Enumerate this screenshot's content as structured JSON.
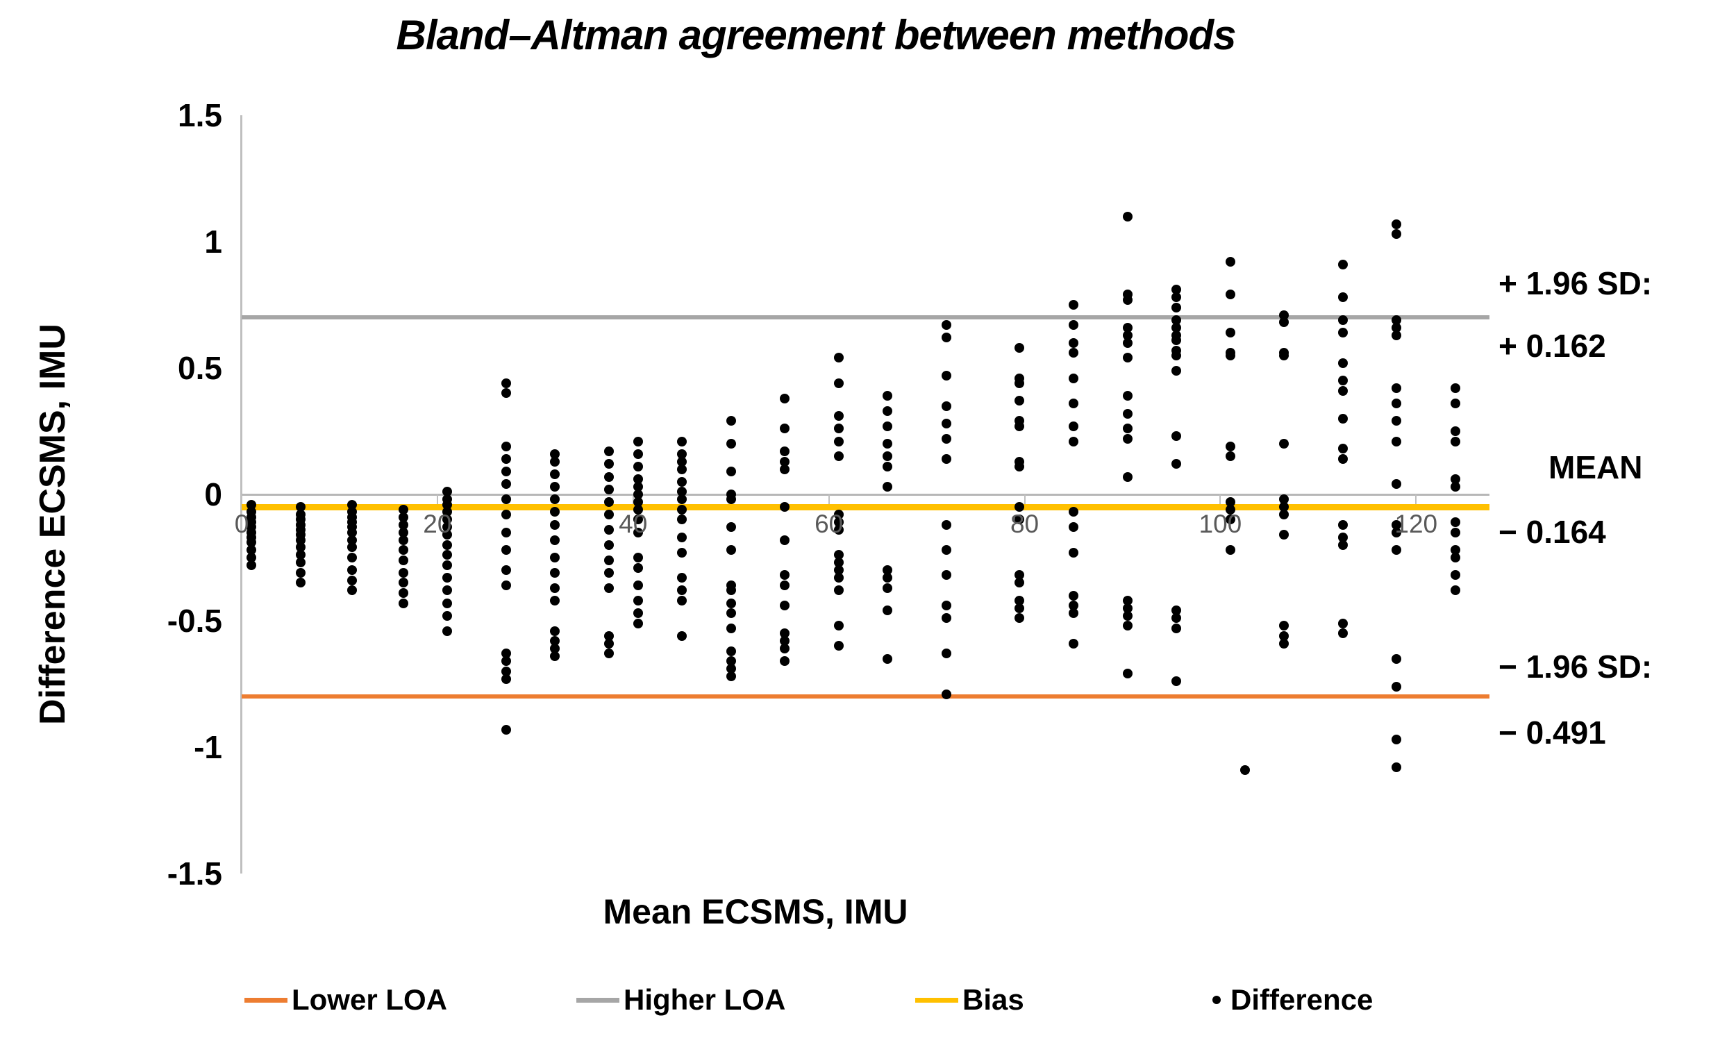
{
  "chart_data": {
    "type": "scatter",
    "title": "Bland–Altman agreement between methods",
    "xlabel": "Mean ECSMS, IMU",
    "ylabel": "Difference ECSMS, IMU",
    "xlim": [
      0,
      127.5
    ],
    "ylim": [
      -1.5,
      1.5
    ],
    "grid": false,
    "legend_position": "bottom",
    "x_ticks": [
      0,
      20,
      40,
      60,
      80,
      100,
      120
    ],
    "y_ticks": [
      {
        "v": 1.5,
        "label": "1.5"
      },
      {
        "v": 1,
        "label": "1"
      },
      {
        "v": 0.5,
        "label": "0.5"
      },
      {
        "v": 0,
        "label": "0"
      },
      {
        "v": -0.5,
        "label": "-0.5"
      },
      {
        "v": -1,
        "label": "-1"
      },
      {
        "v": -1.5,
        "label": "-1.5"
      }
    ],
    "reference_lines": [
      {
        "name": "Higher LOA",
        "value": 0.7,
        "color": "#a6a6a6",
        "thickness": 6
      },
      {
        "name": "Bias",
        "value": -0.05,
        "color": "#ffc000",
        "thickness": 9
      },
      {
        "name": "Lower LOA",
        "value": -0.8,
        "color": "#ed7d31",
        "thickness": 6
      }
    ],
    "annotations": [
      {
        "text": "+ 1.96 SD:",
        "y": 0.835,
        "indent": 0
      },
      {
        "text": "+ 0.162",
        "y": 0.588,
        "indent": 0
      },
      {
        "text": "MEAN",
        "y": 0.107,
        "indent": 72
      },
      {
        "text": "− 0.164",
        "y": -0.148,
        "indent": 0
      },
      {
        "text": "− 1.96 SD:",
        "y": -0.681,
        "indent": 0
      },
      {
        "text": "− 0.491",
        "y": -0.942,
        "indent": 0
      }
    ],
    "legend": [
      {
        "label": "Lower LOA",
        "swatch": "line",
        "color": "#ed7d31",
        "left": 352
      },
      {
        "label": "Higher LOA",
        "swatch": "line",
        "color": "#a6a6a6",
        "left": 830
      },
      {
        "label": "Bias",
        "swatch": "line",
        "color": "#ffc000",
        "left": 1318
      },
      {
        "label": "Difference",
        "swatch": "dot",
        "color": "#000000",
        "left": 1742
      }
    ],
    "series": [
      {
        "name": "Difference",
        "marker": "dot",
        "color": "#000000",
        "clusters": [
          {
            "x": 1,
            "ys": [
              -0.04,
              -0.07,
              -0.09,
              -0.11,
              -0.13,
              -0.15,
              -0.17,
              -0.19,
              -0.22,
              -0.25,
              -0.28
            ]
          },
          {
            "x": 6,
            "ys": [
              -0.05,
              -0.08,
              -0.1,
              -0.12,
              -0.14,
              -0.16,
              -0.18,
              -0.21,
              -0.24,
              -0.27,
              -0.31,
              -0.35
            ]
          },
          {
            "x": 11.3,
            "ys": [
              -0.04,
              -0.07,
              -0.09,
              -0.11,
              -0.13,
              -0.15,
              -0.18,
              -0.21,
              -0.25,
              -0.3,
              -0.34,
              -0.38
            ]
          },
          {
            "x": 16.5,
            "ys": [
              -0.06,
              -0.09,
              -0.12,
              -0.15,
              -0.18,
              -0.22,
              -0.26,
              -0.31,
              -0.35,
              -0.39,
              -0.43
            ]
          },
          {
            "x": 21,
            "ys": [
              0.01,
              -0.02,
              -0.04,
              -0.07,
              -0.1,
              -0.13,
              -0.16,
              -0.2,
              -0.24,
              -0.28,
              -0.33,
              -0.38,
              -0.43,
              -0.48,
              -0.54
            ]
          },
          {
            "x": 27,
            "ys": [
              0.44,
              0.4,
              0.19,
              0.14,
              0.09,
              0.04,
              -0.02,
              -0.08,
              -0.15,
              -0.22,
              -0.3,
              -0.36,
              -0.63,
              -0.66,
              -0.7,
              -0.73,
              -0.93
            ]
          },
          {
            "x": 32,
            "ys": [
              0.16,
              0.13,
              0.08,
              0.03,
              -0.02,
              -0.07,
              -0.12,
              -0.18,
              -0.25,
              -0.31,
              -0.37,
              -0.42,
              -0.54,
              -0.58,
              -0.61,
              -0.64
            ]
          },
          {
            "x": 37.5,
            "ys": [
              0.17,
              0.12,
              0.07,
              0.02,
              -0.03,
              -0.08,
              -0.14,
              -0.2,
              -0.26,
              -0.31,
              -0.37,
              -0.56,
              -0.59,
              -0.63
            ]
          },
          {
            "x": 40.5,
            "ys": [
              0.21,
              0.16,
              0.11,
              0.06,
              0.03,
              0.0,
              -0.03,
              -0.06,
              -0.1,
              -0.15,
              -0.25,
              -0.29,
              -0.36,
              -0.42,
              -0.47,
              -0.51
            ]
          },
          {
            "x": 45,
            "ys": [
              0.21,
              0.16,
              0.13,
              0.1,
              0.05,
              0.01,
              -0.02,
              -0.06,
              -0.1,
              -0.17,
              -0.23,
              -0.33,
              -0.38,
              -0.42,
              -0.56
            ]
          },
          {
            "x": 50,
            "ys": [
              0.29,
              0.2,
              0.09,
              0.0,
              -0.02,
              -0.13,
              -0.22,
              -0.36,
              -0.38,
              -0.43,
              -0.47,
              -0.53,
              -0.62,
              -0.66,
              -0.69,
              -0.72
            ]
          },
          {
            "x": 55.5,
            "ys": [
              0.38,
              0.26,
              0.17,
              0.13,
              0.1,
              -0.05,
              -0.18,
              -0.32,
              -0.36,
              -0.44,
              -0.55,
              -0.58,
              -0.61,
              -0.66
            ]
          },
          {
            "x": 61,
            "ys": [
              0.54,
              0.44,
              0.31,
              0.26,
              0.21,
              0.15,
              -0.08,
              -0.11,
              -0.14,
              -0.24,
              -0.27,
              -0.3,
              -0.33,
              -0.38,
              -0.52,
              -0.6
            ]
          },
          {
            "x": 66,
            "ys": [
              0.39,
              0.33,
              0.27,
              0.2,
              0.15,
              0.11,
              0.03,
              -0.3,
              -0.33,
              -0.37,
              -0.46,
              -0.65
            ]
          },
          {
            "x": 72,
            "ys": [
              0.67,
              0.62,
              0.47,
              0.35,
              0.28,
              0.22,
              0.14,
              -0.12,
              -0.22,
              -0.32,
              -0.44,
              -0.49,
              -0.63,
              -0.79
            ]
          },
          {
            "x": 79.5,
            "ys": [
              0.58,
              0.46,
              0.44,
              0.37,
              0.29,
              0.27,
              0.13,
              0.11,
              -0.05,
              -0.1,
              -0.32,
              -0.35,
              -0.42,
              -0.45,
              -0.49
            ]
          },
          {
            "x": 85,
            "ys": [
              0.75,
              0.67,
              0.6,
              0.56,
              0.46,
              0.36,
              0.27,
              0.21,
              -0.07,
              -0.13,
              -0.23,
              -0.4,
              -0.44,
              -0.47,
              -0.59
            ]
          },
          {
            "x": 90.5,
            "ys": [
              1.1,
              0.79,
              0.77,
              0.66,
              0.63,
              0.6,
              0.54,
              0.39,
              0.32,
              0.26,
              0.22,
              0.07,
              -0.42,
              -0.45,
              -0.48,
              -0.52,
              -0.71
            ]
          },
          {
            "x": 95.5,
            "ys": [
              0.81,
              0.78,
              0.74,
              0.69,
              0.66,
              0.63,
              0.61,
              0.57,
              0.55,
              0.49,
              0.23,
              0.12,
              -0.46,
              -0.49,
              -0.53,
              -0.74
            ]
          },
          {
            "x": 101,
            "ys": [
              0.92,
              0.79,
              0.64,
              0.56,
              0.55,
              0.19,
              0.15,
              -0.03,
              -0.06,
              -0.1,
              -0.22
            ]
          },
          {
            "x": 102.5,
            "ys": [
              -1.09
            ]
          },
          {
            "x": 106.5,
            "ys": [
              0.71,
              0.68,
              0.56,
              0.55,
              0.2,
              -0.02,
              -0.05,
              -0.08,
              -0.16,
              -0.52,
              -0.56,
              -0.59
            ]
          },
          {
            "x": 112.5,
            "ys": [
              0.91,
              0.78,
              0.69,
              0.64,
              0.52,
              0.45,
              0.41,
              0.3,
              0.18,
              0.14,
              -0.12,
              -0.17,
              -0.2,
              -0.51,
              -0.55
            ]
          },
          {
            "x": 118,
            "ys": [
              1.07,
              1.03,
              0.69,
              0.66,
              0.63,
              0.42,
              0.36,
              0.29,
              0.21,
              0.04,
              -0.12,
              -0.15,
              -0.22,
              -0.65,
              -0.76,
              -0.97,
              -1.08
            ]
          },
          {
            "x": 124,
            "ys": [
              0.42,
              0.36,
              0.25,
              0.21,
              0.06,
              0.03,
              -0.11,
              -0.15,
              -0.22,
              -0.25,
              -0.32,
              -0.38
            ]
          }
        ]
      }
    ]
  }
}
